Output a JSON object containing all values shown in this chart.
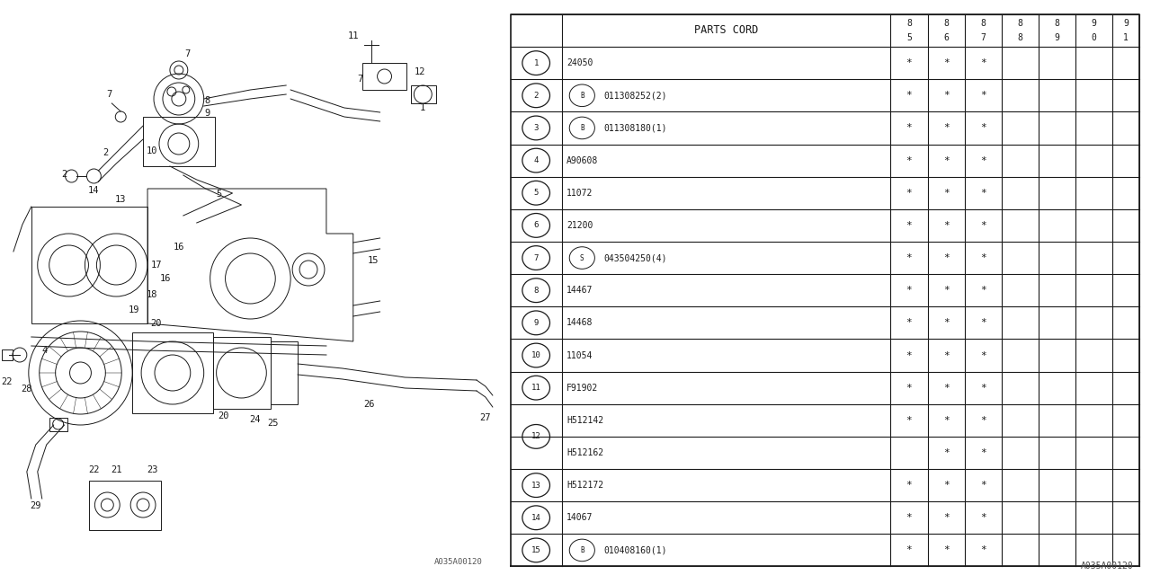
{
  "watermark": "A035A00120",
  "col_header_split": [
    [
      "8",
      "5"
    ],
    [
      "8",
      "6"
    ],
    [
      "8",
      "7"
    ],
    [
      "8",
      "8"
    ],
    [
      "8",
      "9"
    ],
    [
      "9",
      "0"
    ],
    [
      "9",
      "1"
    ]
  ],
  "rows": [
    {
      "num": "1",
      "prefix": "",
      "code": "24050",
      "c85": "*",
      "c86": "*",
      "c87": "*",
      "c88": "",
      "c89": "",
      "c90": "",
      "c91": ""
    },
    {
      "num": "2",
      "prefix": "B",
      "code": "011308252(2)",
      "c85": "*",
      "c86": "*",
      "c87": "*",
      "c88": "",
      "c89": "",
      "c90": "",
      "c91": ""
    },
    {
      "num": "3",
      "prefix": "B",
      "code": "011308180(1)",
      "c85": "*",
      "c86": "*",
      "c87": "*",
      "c88": "",
      "c89": "",
      "c90": "",
      "c91": ""
    },
    {
      "num": "4",
      "prefix": "",
      "code": "A90608",
      "c85": "*",
      "c86": "*",
      "c87": "*",
      "c88": "",
      "c89": "",
      "c90": "",
      "c91": ""
    },
    {
      "num": "5",
      "prefix": "",
      "code": "11072",
      "c85": "*",
      "c86": "*",
      "c87": "*",
      "c88": "",
      "c89": "",
      "c90": "",
      "c91": ""
    },
    {
      "num": "6",
      "prefix": "",
      "code": "21200",
      "c85": "*",
      "c86": "*",
      "c87": "*",
      "c88": "",
      "c89": "",
      "c90": "",
      "c91": ""
    },
    {
      "num": "7",
      "prefix": "S",
      "code": "043504250(4)",
      "c85": "*",
      "c86": "*",
      "c87": "*",
      "c88": "",
      "c89": "",
      "c90": "",
      "c91": ""
    },
    {
      "num": "8",
      "prefix": "",
      "code": "14467",
      "c85": "*",
      "c86": "*",
      "c87": "*",
      "c88": "",
      "c89": "",
      "c90": "",
      "c91": ""
    },
    {
      "num": "9",
      "prefix": "",
      "code": "14468",
      "c85": "*",
      "c86": "*",
      "c87": "*",
      "c88": "",
      "c89": "",
      "c90": "",
      "c91": ""
    },
    {
      "num": "10",
      "prefix": "",
      "code": "11054",
      "c85": "*",
      "c86": "*",
      "c87": "*",
      "c88": "",
      "c89": "",
      "c90": "",
      "c91": ""
    },
    {
      "num": "11",
      "prefix": "",
      "code": "F91902",
      "c85": "*",
      "c86": "*",
      "c87": "*",
      "c88": "",
      "c89": "",
      "c90": "",
      "c91": ""
    },
    {
      "num": "12",
      "prefix": "",
      "code": "H512142",
      "c85": "*",
      "c86": "*",
      "c87": "*",
      "c88": "",
      "c89": "",
      "c90": "",
      "c91": ""
    },
    {
      "num": "12",
      "prefix": "",
      "code": "H512162",
      "c85": "",
      "c86": "*",
      "c87": "*",
      "c88": "",
      "c89": "",
      "c90": "",
      "c91": ""
    },
    {
      "num": "13",
      "prefix": "",
      "code": "H512172",
      "c85": "*",
      "c86": "*",
      "c87": "*",
      "c88": "",
      "c89": "",
      "c90": "",
      "c91": ""
    },
    {
      "num": "14",
      "prefix": "",
      "code": "14067",
      "c85": "*",
      "c86": "*",
      "c87": "*",
      "c88": "",
      "c89": "",
      "c90": "",
      "c91": ""
    },
    {
      "num": "15",
      "prefix": "B",
      "code": "010408160(1)",
      "c85": "*",
      "c86": "*",
      "c87": "*",
      "c88": "",
      "c89": "",
      "c90": "",
      "c91": ""
    }
  ],
  "bg_color": "#ffffff",
  "line_color": "#1a1a1a",
  "text_color": "#1a1a1a"
}
